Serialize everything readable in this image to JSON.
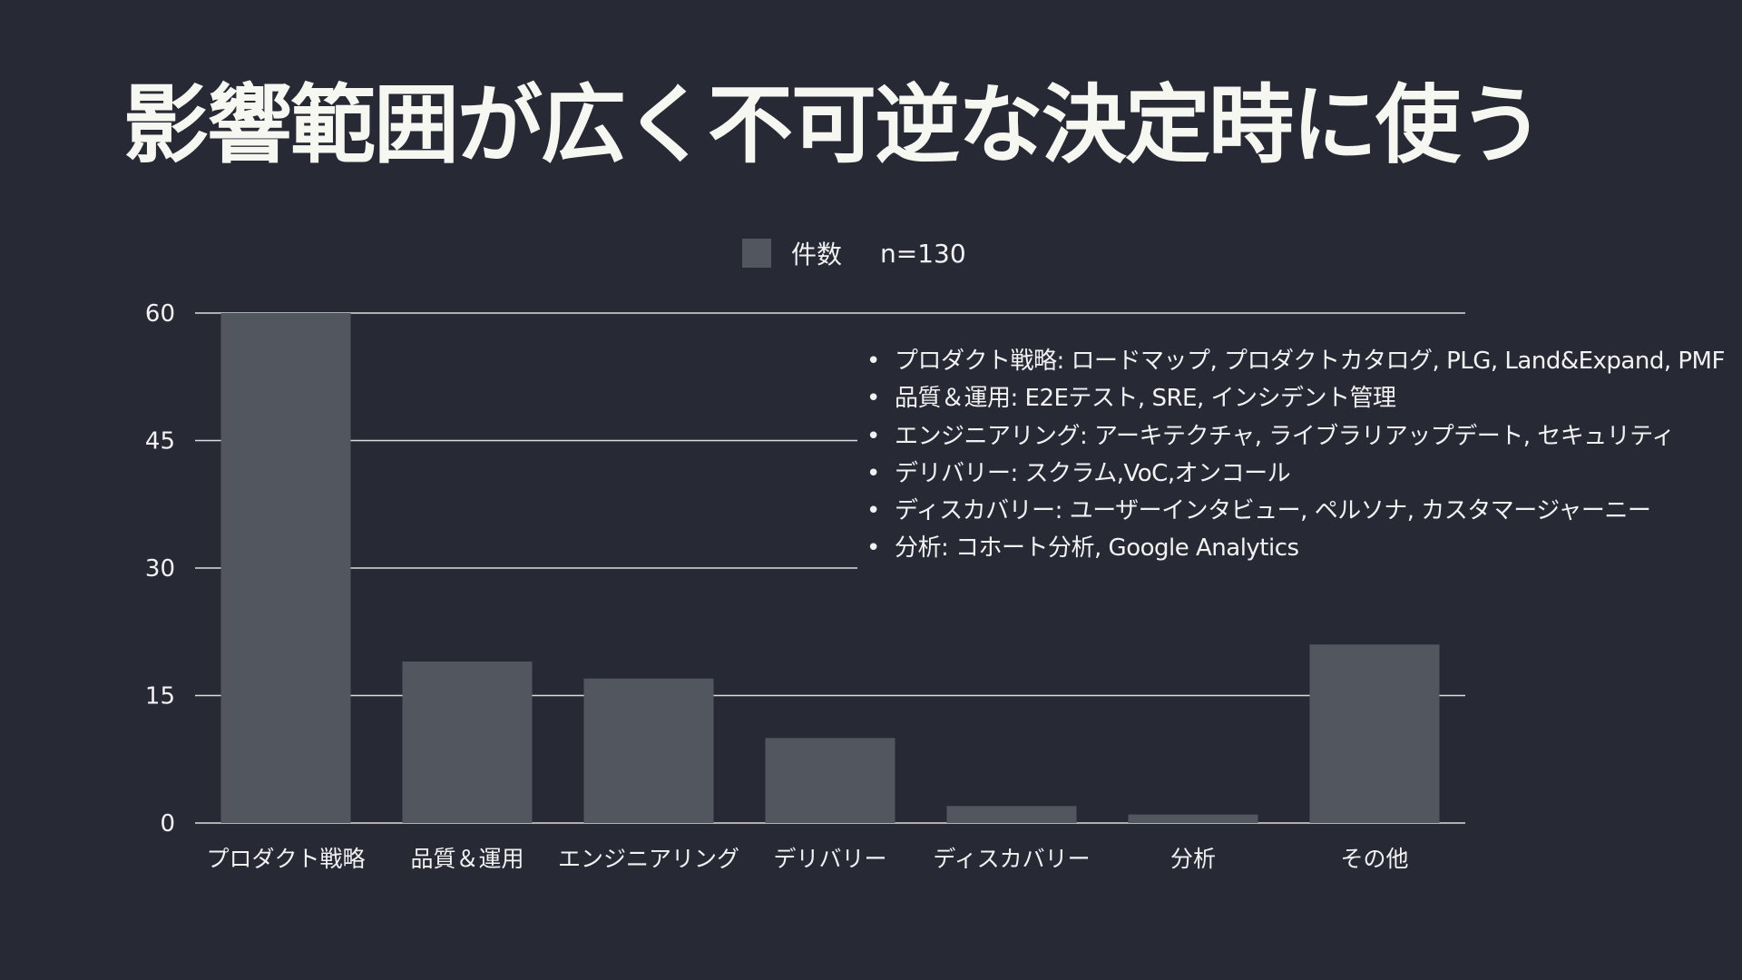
{
  "title": "影響範囲が広く不可逆な決定時に使う",
  "chart_data": {
    "type": "bar",
    "title": "影響範囲が広く不可逆な決定時に使う",
    "categories": [
      "プロダクト戦略",
      "品質＆運用",
      "エンジニアリング",
      "デリバリー",
      "ディスカバリー",
      "分析",
      "その他"
    ],
    "series": [
      {
        "name": "件数",
        "values": [
          60,
          19,
          17,
          10,
          2,
          1,
          21
        ]
      }
    ],
    "legend_note": "n=130",
    "ylim": [
      0,
      60
    ],
    "yticks": [
      0,
      15,
      30,
      45,
      60
    ],
    "grid": true,
    "legend_placement": "top-center",
    "colors": {
      "background": "#272a35",
      "bar": "#52575f",
      "grid": "#dddddd",
      "text": "#f2f2f2"
    },
    "annotations": [
      "プロダクト戦略: ロードマップ, プロダクトカタログ, PLG, Land&Expand, PMF",
      "品質＆運用: E2Eテスト, SRE, インシデント管理",
      "エンジニアリング: アーキテクチャ, ライブラリアップデート, セキュリティ",
      "デリバリー: スクラム,VoC,オンコール",
      "ディスカバリー: ユーザーインタビュー, ペルソナ, カスタマージャーニー",
      "分析: コホート分析, Google Analytics"
    ]
  }
}
